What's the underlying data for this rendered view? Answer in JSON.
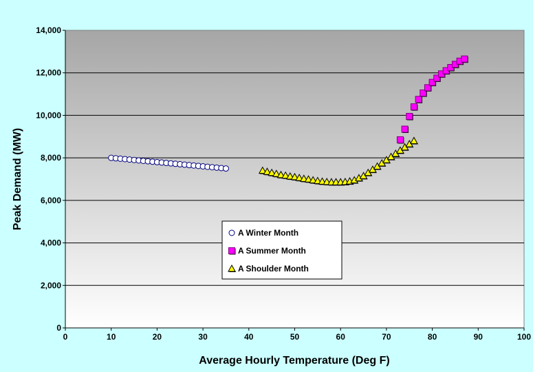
{
  "chart_data": {
    "type": "scatter",
    "xlabel": "Average Hourly Temperature (Deg F)",
    "ylabel": "Peak Demand (MW)",
    "xlim": [
      0,
      100
    ],
    "ylim": [
      0,
      14000
    ],
    "x_ticks": [
      0,
      10,
      20,
      30,
      40,
      50,
      60,
      70,
      80,
      90,
      100
    ],
    "y_ticks": [
      0,
      2000,
      4000,
      6000,
      8000,
      10000,
      12000,
      14000
    ],
    "x_tick_labels": [
      "0",
      "10",
      "20",
      "30",
      "40",
      "50",
      "60",
      "70",
      "80",
      "90",
      "100"
    ],
    "y_tick_labels": [
      "0",
      "2,000",
      "4,000",
      "6,000",
      "8,000",
      "10,000",
      "12,000",
      "14,000"
    ],
    "grid": "horizontal",
    "legend_position": "center",
    "plot_background": [
      "#a6a6a6",
      "#ffffff"
    ],
    "series": [
      {
        "name": "A Winter Month",
        "marker": "circle",
        "color": "#ffffff",
        "edge_color": "#000080",
        "x": [
          10,
          11,
          12,
          13,
          14,
          15,
          16,
          17,
          18,
          19,
          20,
          21,
          22,
          23,
          24,
          25,
          26,
          27,
          28,
          29,
          30,
          31,
          32,
          33,
          34,
          35
        ],
        "y": [
          8000,
          7980,
          7960,
          7940,
          7920,
          7900,
          7880,
          7860,
          7840,
          7820,
          7800,
          7780,
          7760,
          7740,
          7720,
          7700,
          7680,
          7660,
          7640,
          7620,
          7600,
          7580,
          7560,
          7540,
          7520,
          7500
        ]
      },
      {
        "name": "A Summer Month",
        "marker": "square",
        "color": "#ff00ff",
        "edge_color": "#000000",
        "x": [
          73,
          74,
          75,
          76,
          77,
          78,
          79,
          80,
          81,
          82,
          83,
          84,
          85,
          86,
          87
        ],
        "y": [
          8850,
          9350,
          9950,
          10400,
          10750,
          11050,
          11300,
          11550,
          11750,
          11950,
          12100,
          12250,
          12400,
          12550,
          12650
        ]
      },
      {
        "name": "A Shoulder Month",
        "marker": "triangle",
        "color": "#ffff00",
        "edge_color": "#000000",
        "x": [
          43,
          44,
          45,
          46,
          47,
          48,
          49,
          50,
          51,
          52,
          53,
          54,
          55,
          56,
          57,
          58,
          59,
          60,
          61,
          62,
          63,
          64,
          65,
          66,
          67,
          68,
          69,
          70,
          71,
          72,
          73,
          74,
          75,
          76
        ],
        "y": [
          7400,
          7350,
          7300,
          7250,
          7200,
          7170,
          7130,
          7100,
          7060,
          7020,
          6990,
          6950,
          6920,
          6890,
          6870,
          6860,
          6860,
          6860,
          6870,
          6900,
          6950,
          7050,
          7150,
          7300,
          7450,
          7600,
          7750,
          7900,
          8050,
          8200,
          8350,
          8500,
          8650,
          8800
        ]
      }
    ]
  }
}
